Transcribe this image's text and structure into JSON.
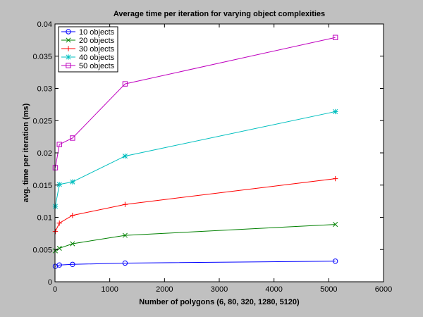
{
  "chart_data": {
    "type": "line",
    "title": "Average time per iteration for varying object complexities",
    "xlabel": "Number of polygons (6, 80, 320, 1280, 5120)",
    "ylabel": "avg. time per iteration (ms)",
    "xlim": [
      0,
      6000
    ],
    "ylim": [
      0,
      0.04
    ],
    "xticks": [
      0,
      1000,
      2000,
      3000,
      4000,
      5000,
      6000
    ],
    "xtick_labels": [
      "0",
      "1000",
      "2000",
      "3000",
      "4000",
      "5000",
      "6000"
    ],
    "yticks": [
      0,
      0.005,
      0.01,
      0.015,
      0.02,
      0.025,
      0.03,
      0.035,
      0.04
    ],
    "ytick_labels": [
      "0",
      "0.005",
      "0.01",
      "0.015",
      "0.02",
      "0.025",
      "0.03",
      "0.035",
      "0.04"
    ],
    "grid": false,
    "legend_position": "top-left",
    "x": [
      6,
      80,
      320,
      1280,
      5120
    ],
    "series": [
      {
        "name": "10 objects",
        "color": "#0000ff",
        "marker": "circle",
        "values": [
          0.0024,
          0.0026,
          0.0027,
          0.0029,
          0.0032
        ]
      },
      {
        "name": "20 objects",
        "color": "#008000",
        "marker": "x",
        "values": [
          0.0048,
          0.0052,
          0.0059,
          0.0072,
          0.0089
        ]
      },
      {
        "name": "30 objects",
        "color": "#ff0000",
        "marker": "plus",
        "values": [
          0.0078,
          0.0091,
          0.0103,
          0.012,
          0.016
        ]
      },
      {
        "name": "40 objects",
        "color": "#00bfbf",
        "marker": "star",
        "values": [
          0.0117,
          0.0151,
          0.0155,
          0.0195,
          0.0264
        ]
      },
      {
        "name": "50 objects",
        "color": "#bf00bf",
        "marker": "square",
        "values": [
          0.0177,
          0.0213,
          0.0223,
          0.0307,
          0.0379
        ]
      }
    ]
  }
}
